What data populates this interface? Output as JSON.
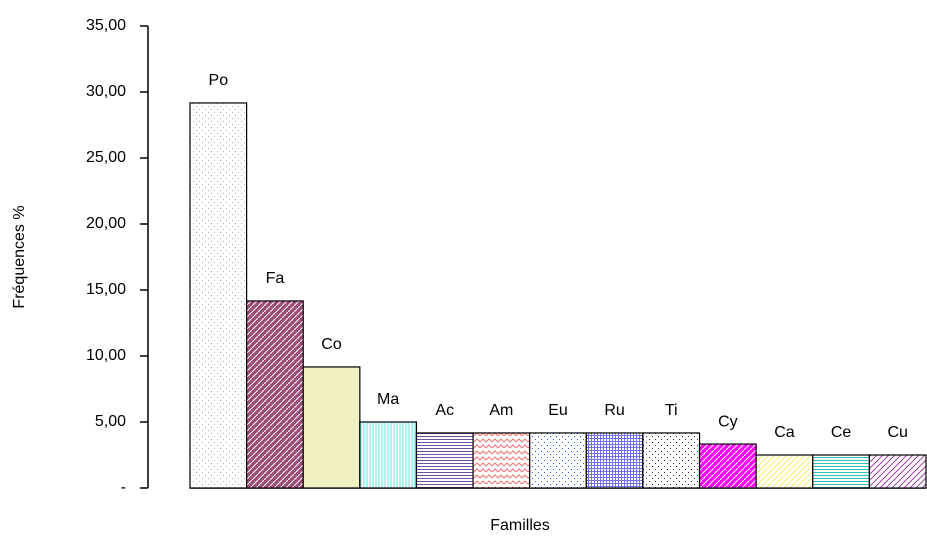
{
  "chart_data": {
    "type": "bar",
    "y_label": "Fréquences %",
    "x_label": "Familles",
    "categories": [
      "Po",
      "Fa",
      "Co",
      "Ma",
      "Ac",
      "Am",
      "Eu",
      "Ru",
      "Ti",
      "Cy",
      "Ca",
      "Ce",
      "Cu"
    ],
    "values": [
      29.17,
      14.17,
      9.17,
      5.0,
      4.17,
      4.17,
      4.17,
      4.17,
      4.17,
      3.33,
      2.5,
      2.5,
      2.5
    ],
    "colors": [
      "#b0b0b0",
      "#a04a78",
      "#f0f0c0",
      "#60e0e0",
      "#7050a0",
      "#f07070",
      "#3050f0",
      "#7070f0",
      "#303030",
      "#ff00ff",
      "#f0f070",
      "#30c0c0",
      "#a040a0"
    ],
    "ylim": [
      0,
      35
    ],
    "yticks": [
      {
        "value": 0,
        "label": "-"
      },
      {
        "value": 5,
        "label": "5,00"
      },
      {
        "value": 10,
        "label": "10,00"
      },
      {
        "value": 15,
        "label": "15,00"
      },
      {
        "value": 20,
        "label": "20,00"
      },
      {
        "value": 25,
        "label": "25,00"
      },
      {
        "value": 30,
        "label": "30,00"
      },
      {
        "value": 35,
        "label": "35,00"
      }
    ],
    "grid": false
  }
}
